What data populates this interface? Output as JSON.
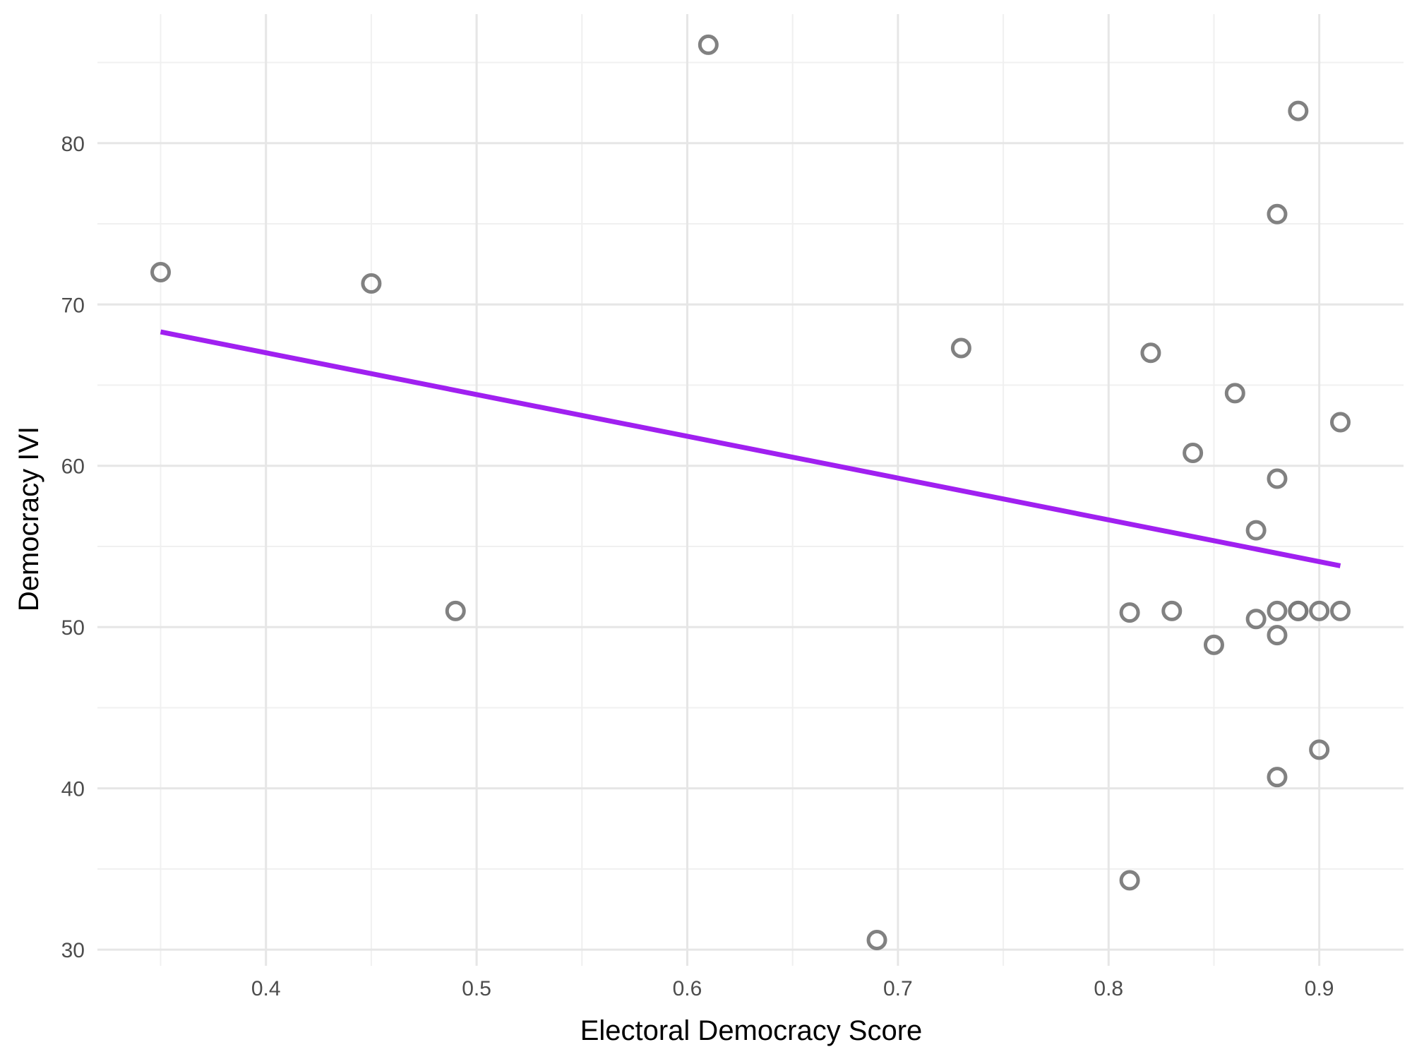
{
  "chart_data": {
    "type": "scatter",
    "xlabel": "Electoral Democracy Score",
    "ylabel": "Democracy IVI",
    "xlim": [
      0.32,
      0.94
    ],
    "ylim": [
      29,
      88
    ],
    "x_ticks": [
      0.4,
      0.5,
      0.6,
      0.7,
      0.8,
      0.9
    ],
    "y_ticks": [
      30,
      40,
      50,
      60,
      70,
      80
    ],
    "x_tick_labels": [
      "0.4",
      "0.5",
      "0.6",
      "0.7",
      "0.8",
      "0.9"
    ],
    "y_tick_labels": [
      "30",
      "40",
      "50",
      "60",
      "70",
      "80"
    ],
    "grid": true,
    "legend": "none",
    "point_style": "hollow circle",
    "point_color": "#7a7a7a",
    "trend_color": "#a020f0",
    "points": [
      {
        "x": 0.35,
        "y": 72.0
      },
      {
        "x": 0.45,
        "y": 71.3
      },
      {
        "x": 0.49,
        "y": 51.0
      },
      {
        "x": 0.61,
        "y": 86.1
      },
      {
        "x": 0.69,
        "y": 30.6
      },
      {
        "x": 0.73,
        "y": 67.3
      },
      {
        "x": 0.81,
        "y": 50.9
      },
      {
        "x": 0.81,
        "y": 34.3
      },
      {
        "x": 0.82,
        "y": 67.0
      },
      {
        "x": 0.83,
        "y": 51.0
      },
      {
        "x": 0.84,
        "y": 60.8
      },
      {
        "x": 0.85,
        "y": 48.9
      },
      {
        "x": 0.86,
        "y": 64.5
      },
      {
        "x": 0.87,
        "y": 56.0
      },
      {
        "x": 0.87,
        "y": 50.5
      },
      {
        "x": 0.88,
        "y": 75.6
      },
      {
        "x": 0.88,
        "y": 59.2
      },
      {
        "x": 0.88,
        "y": 51.0
      },
      {
        "x": 0.88,
        "y": 49.5
      },
      {
        "x": 0.88,
        "y": 40.7
      },
      {
        "x": 0.89,
        "y": 82.0
      },
      {
        "x": 0.89,
        "y": 51.0
      },
      {
        "x": 0.89,
        "y": 51.0
      },
      {
        "x": 0.9,
        "y": 51.0
      },
      {
        "x": 0.9,
        "y": 42.4
      },
      {
        "x": 0.91,
        "y": 62.7
      },
      {
        "x": 0.91,
        "y": 51.0
      }
    ],
    "trend_line": {
      "x": [
        0.35,
        0.91
      ],
      "y": [
        68.3,
        53.8
      ]
    }
  }
}
